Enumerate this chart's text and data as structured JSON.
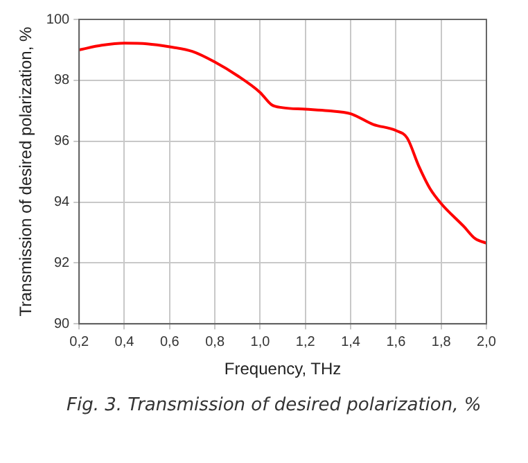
{
  "chart_data": {
    "type": "line",
    "xlabel": "Frequency, THz",
    "ylabel": "Transmission of desired polarization, %",
    "annotations": [
      "Fig. 3. Transmission of desired polarization, %"
    ],
    "x": [
      0.2,
      0.3,
      0.4,
      0.5,
      0.6,
      0.7,
      0.8,
      0.9,
      1.0,
      1.05,
      1.1,
      1.2,
      1.3,
      1.4,
      1.5,
      1.6,
      1.65,
      1.7,
      1.75,
      1.8,
      1.9,
      1.95,
      2.0
    ],
    "series": [
      {
        "color": "#ff0000",
        "values": [
          99.0,
          99.15,
          99.22,
          99.2,
          99.1,
          98.95,
          98.6,
          98.15,
          97.6,
          97.2,
          97.1,
          97.05,
          97.0,
          96.9,
          96.55,
          96.35,
          96.1,
          95.2,
          94.45,
          93.95,
          93.2,
          92.8,
          92.65
        ]
      }
    ],
    "xlim": [
      0.2,
      2.0
    ],
    "xticks": [
      {
        "value": 0.2,
        "label": "0,2"
      },
      {
        "value": 0.4,
        "label": "0,4"
      },
      {
        "value": 0.6,
        "label": "0,6"
      },
      {
        "value": 0.8,
        "label": "0,8"
      },
      {
        "value": 1.0,
        "label": "1,0"
      },
      {
        "value": 1.2,
        "label": "1,2"
      },
      {
        "value": 1.4,
        "label": "1,4"
      },
      {
        "value": 1.6,
        "label": "1,6"
      },
      {
        "value": 1.8,
        "label": "1,8"
      },
      {
        "value": 2.0,
        "label": "2,0"
      }
    ],
    "ylim": [
      90,
      100
    ],
    "yticks": [
      90,
      92,
      94,
      96,
      98,
      100
    ],
    "grid": true,
    "legend": false,
    "marker": "none",
    "line_style": "solid"
  }
}
